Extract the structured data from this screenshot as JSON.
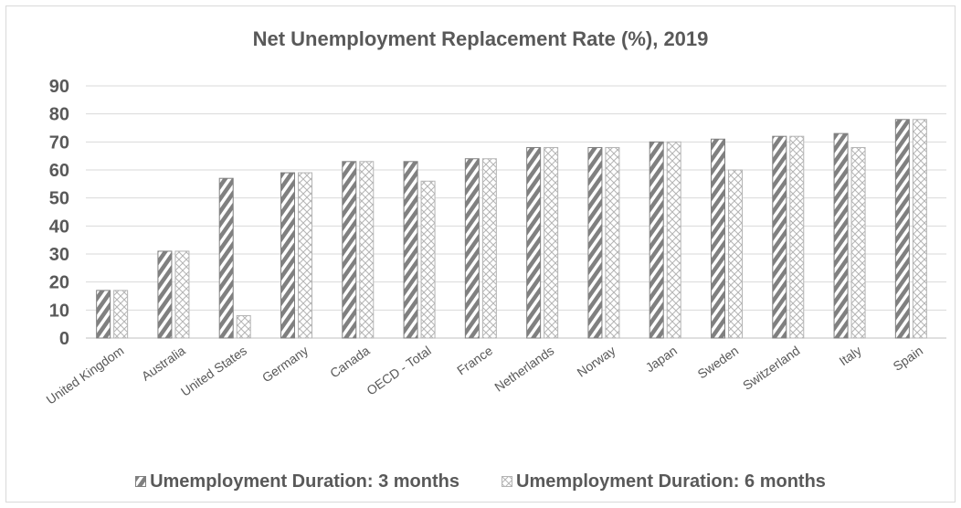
{
  "chart_data": {
    "type": "bar",
    "title": "Net Unemployment Replacement Rate (%), 2019",
    "categories": [
      "United Kingdom",
      "Australia",
      "United States",
      "Germany",
      "Canada",
      "OECD - Total",
      "France",
      "Netherlands",
      "Norway",
      "Japan",
      "Sweden",
      "Switzerland",
      "Italy",
      "Spain"
    ],
    "series": [
      {
        "name": "Umemployment Duration: 3 months",
        "values": [
          17,
          31,
          57,
          59,
          63,
          63,
          64,
          68,
          68,
          70,
          71,
          72,
          73,
          78
        ],
        "color": "#808080"
      },
      {
        "name": "Umemployment Duration: 6 months",
        "values": [
          17,
          31,
          8,
          59,
          63,
          56,
          64,
          68,
          68,
          70,
          60,
          72,
          68,
          78
        ],
        "color": "#c8c8c8"
      }
    ],
    "ylim": [
      0,
      90
    ],
    "yticks": [
      0,
      10,
      20,
      30,
      40,
      50,
      60,
      70,
      80,
      90
    ],
    "grid": true,
    "legend_position": "bottom"
  }
}
